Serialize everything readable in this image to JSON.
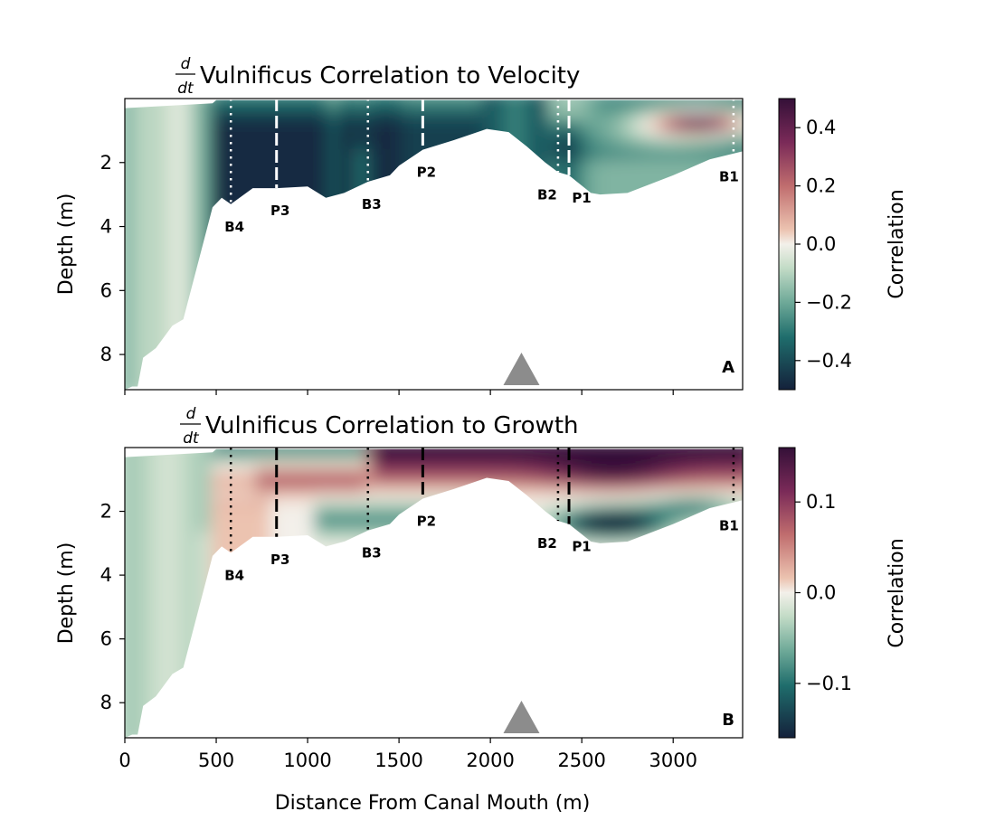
{
  "chart_data": [
    {
      "type": "heatmap",
      "panel_label": "A",
      "title_prefix": "d/dt",
      "title": "Vulnificus Correlation to Velocity",
      "ylabel": "Depth (m)",
      "xlim": [
        0,
        3380
      ],
      "ylim": [
        9.1,
        0.0
      ],
      "y_inverted": true,
      "x_ticks": [
        0,
        500,
        1000,
        1500,
        2000,
        2500,
        3000
      ],
      "x_tick_labels_visible": false,
      "y_ticks": [
        2,
        4,
        6,
        8
      ],
      "colorbar": {
        "label": "Correlation",
        "min": -0.5,
        "max": 0.5,
        "ticks": [
          0.4,
          0.2,
          0.0,
          -0.2,
          -0.4
        ],
        "tick_labels": [
          "0.4",
          "0.2",
          "0.0",
          "−0.2",
          "−0.4"
        ],
        "colormap": "curl (teal-white-maroon)"
      },
      "stations": [
        {
          "name": "B4",
          "x": 580,
          "bottom_depth": 3.3,
          "style": "dotted"
        },
        {
          "name": "P3",
          "x": 830,
          "bottom_depth": 2.8,
          "style": "dashed"
        },
        {
          "name": "B3",
          "x": 1330,
          "bottom_depth": 2.6,
          "style": "dotted"
        },
        {
          "name": "P2",
          "x": 1630,
          "bottom_depth": 1.6,
          "style": "dashed"
        },
        {
          "name": "B2",
          "x": 2370,
          "bottom_depth": 2.3,
          "style": "dotted"
        },
        {
          "name": "P1",
          "x": 2430,
          "bottom_depth": 2.4,
          "style": "dashed"
        },
        {
          "name": "B1",
          "x": 3330,
          "bottom_depth": 1.8,
          "style": "dotted"
        }
      ],
      "marker": {
        "shape": "triangle",
        "x": 2170,
        "color": "#8c8c8c"
      },
      "field_summary": [
        {
          "region": "0-500 m, surface to bottom",
          "correlation": -0.1
        },
        {
          "region": "550-1300 m",
          "correlation": -0.45
        },
        {
          "region": "1300-1900 m",
          "correlation": -0.4
        },
        {
          "region": "2450-3000 m",
          "correlation": -0.25
        },
        {
          "region": "2700-3380 m, 0.3-1.2 m depth",
          "correlation": 0.25
        }
      ]
    },
    {
      "type": "heatmap",
      "panel_label": "B",
      "title_prefix": "d/dt",
      "title": "Vulnificus Correlation to Growth",
      "xlabel": "Distance From Canal Mouth (m)",
      "ylabel": "Depth (m)",
      "xlim": [
        0,
        3380
      ],
      "ylim": [
        9.1,
        0.0
      ],
      "y_inverted": true,
      "x_ticks": [
        0,
        500,
        1000,
        1500,
        2000,
        2500,
        3000
      ],
      "y_ticks": [
        2,
        4,
        6,
        8
      ],
      "colorbar": {
        "label": "Correlation",
        "min": -0.16,
        "max": 0.16,
        "ticks": [
          0.1,
          0.0,
          -0.1
        ],
        "tick_labels": [
          "0.1",
          "0.0",
          "−0.1"
        ],
        "colormap": "curl (teal-white-maroon)"
      },
      "stations": [
        {
          "name": "B4",
          "x": 580,
          "bottom_depth": 3.3,
          "style": "dotted"
        },
        {
          "name": "P3",
          "x": 830,
          "bottom_depth": 2.8,
          "style": "dashed"
        },
        {
          "name": "B3",
          "x": 1330,
          "bottom_depth": 2.6,
          "style": "dotted"
        },
        {
          "name": "P2",
          "x": 1630,
          "bottom_depth": 1.6,
          "style": "dashed"
        },
        {
          "name": "B2",
          "x": 2370,
          "bottom_depth": 2.3,
          "style": "dotted"
        },
        {
          "name": "P1",
          "x": 2430,
          "bottom_depth": 2.4,
          "style": "dashed"
        },
        {
          "name": "B1",
          "x": 3330,
          "bottom_depth": 1.8,
          "style": "dotted"
        }
      ],
      "marker": {
        "shape": "triangle",
        "x": 2170,
        "color": "#8c8c8c"
      },
      "field_summary": [
        {
          "region": "0-500 m",
          "correlation": -0.03
        },
        {
          "region": "surface layer 500-1300 m",
          "correlation": -0.05
        },
        {
          "region": "0.5-1.5 m depth 800-1700 m",
          "correlation": 0.04
        },
        {
          "region": "surface 1300-3380 m",
          "correlation": 0.14
        },
        {
          "region": "2-3 m depth 2300-3000 m",
          "correlation": -0.15
        }
      ]
    }
  ],
  "shared": {
    "xlabel": "Distance From Canal Mouth (m)",
    "bathymetry": [
      [
        0,
        0.25
      ],
      [
        450,
        0.2
      ],
      [
        480,
        0.2
      ],
      [
        2100,
        0.2
      ],
      [
        3380,
        0.2
      ]
    ],
    "bottom_profile": [
      [
        40,
        9.0
      ],
      [
        70,
        9.0
      ],
      [
        100,
        8.1
      ],
      [
        170,
        7.8
      ],
      [
        260,
        7.1
      ],
      [
        320,
        6.9
      ],
      [
        480,
        3.4
      ],
      [
        530,
        3.1
      ],
      [
        580,
        3.3
      ],
      [
        700,
        2.8
      ],
      [
        830,
        2.8
      ],
      [
        1000,
        2.75
      ],
      [
        1100,
        3.1
      ],
      [
        1200,
        2.95
      ],
      [
        1330,
        2.6
      ],
      [
        1450,
        2.4
      ],
      [
        1500,
        2.1
      ],
      [
        1630,
        1.6
      ],
      [
        1800,
        1.3
      ],
      [
        1980,
        0.95
      ],
      [
        2100,
        1.05
      ],
      [
        2200,
        1.5
      ],
      [
        2300,
        2.0
      ],
      [
        2370,
        2.3
      ],
      [
        2430,
        2.4
      ],
      [
        2550,
        2.95
      ],
      [
        2600,
        3.0
      ],
      [
        2750,
        2.95
      ],
      [
        3000,
        2.4
      ],
      [
        3200,
        1.9
      ],
      [
        3380,
        1.65
      ]
    ]
  }
}
